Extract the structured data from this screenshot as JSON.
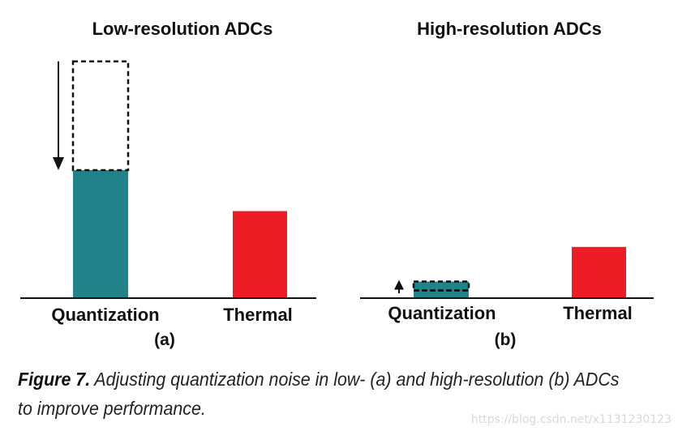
{
  "chart_data": [
    {
      "type": "bar",
      "title": "Low-resolution ADCs",
      "panel_label": "(a)",
      "categories": [
        "Quantization",
        "Thermal"
      ],
      "values": [
        1.0,
        0.68
      ],
      "colors": [
        "#21828a",
        "#ee1c25"
      ],
      "annotation": {
        "category": "Quantization",
        "from": 1.85,
        "to": 1.0,
        "direction": "down"
      }
    },
    {
      "type": "bar",
      "title": "High-resolution ADCs",
      "panel_label": "(b)",
      "categories": [
        "Quantization",
        "Thermal"
      ],
      "values": [
        0.13,
        0.4
      ],
      "colors": [
        "#21828a",
        "#ee1c25"
      ],
      "annotation": {
        "category": "Quantization",
        "from": 0.06,
        "to": 0.13,
        "direction": "up"
      }
    }
  ],
  "caption": {
    "label": "Figure 7.",
    "text": "Adjusting quantization noise in low- (a) and high-resolution (b) ADCs to improve performance."
  },
  "watermark": "https://blog.csdn.net/x1131230123"
}
